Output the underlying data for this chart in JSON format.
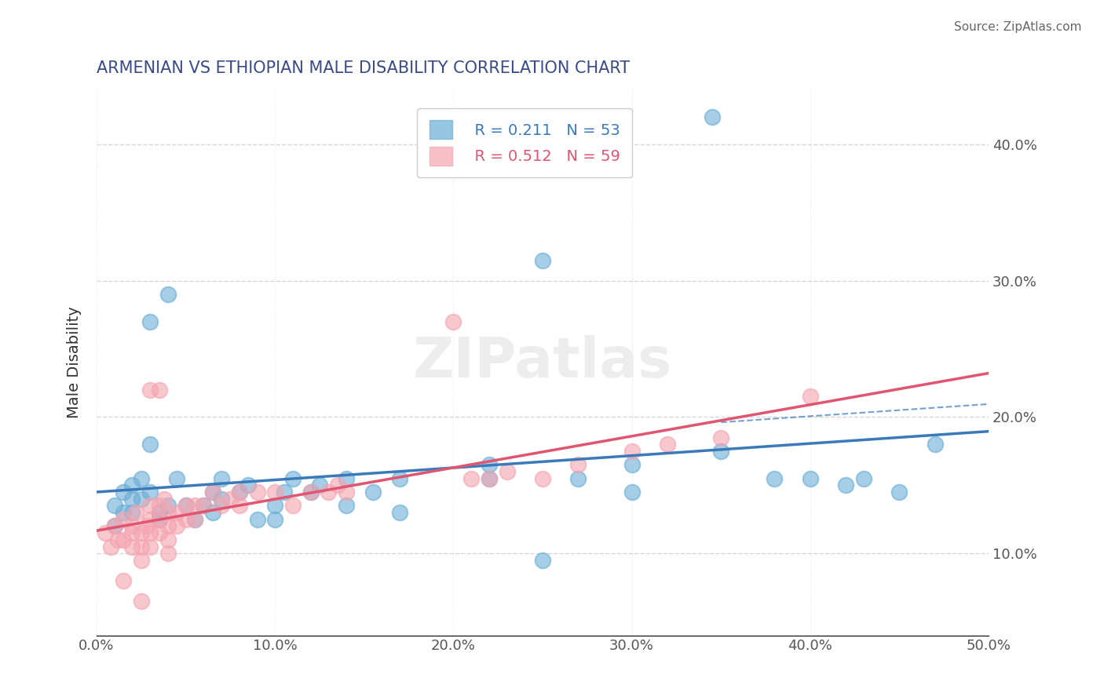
{
  "title": "ARMENIAN VS ETHIOPIAN MALE DISABILITY CORRELATION CHART",
  "source": "Source: ZipAtlas.com",
  "xlabel": "",
  "ylabel": "Male Disability",
  "xlim": [
    0.0,
    0.5
  ],
  "ylim": [
    0.04,
    0.44
  ],
  "xticks": [
    0.0,
    0.1,
    0.2,
    0.3,
    0.4,
    0.5
  ],
  "yticks": [
    0.1,
    0.2,
    0.3,
    0.4
  ],
  "armenian_color": "#6baed6",
  "ethiopian_color": "#f4a4b0",
  "armenian_R": 0.211,
  "armenian_N": 53,
  "ethiopian_R": 0.512,
  "ethiopian_N": 59,
  "title_color": "#3a4a8a",
  "axis_label_color": "#333333",
  "background_color": "#ffffff",
  "grid_color": "#cccccc",
  "armenian_line_color": "#3a7aba",
  "ethiopian_line_color": "#e05570",
  "armenian_scatter": [
    [
      0.01,
      0.135
    ],
    [
      0.01,
      0.12
    ],
    [
      0.015,
      0.145
    ],
    [
      0.015,
      0.13
    ],
    [
      0.02,
      0.15
    ],
    [
      0.02,
      0.14
    ],
    [
      0.02,
      0.13
    ],
    [
      0.025,
      0.155
    ],
    [
      0.025,
      0.14
    ],
    [
      0.03,
      0.27
    ],
    [
      0.03,
      0.145
    ],
    [
      0.03,
      0.18
    ],
    [
      0.035,
      0.13
    ],
    [
      0.035,
      0.125
    ],
    [
      0.04,
      0.29
    ],
    [
      0.04,
      0.135
    ],
    [
      0.045,
      0.155
    ],
    [
      0.05,
      0.135
    ],
    [
      0.055,
      0.125
    ],
    [
      0.06,
      0.135
    ],
    [
      0.065,
      0.145
    ],
    [
      0.065,
      0.13
    ],
    [
      0.07,
      0.14
    ],
    [
      0.07,
      0.155
    ],
    [
      0.08,
      0.145
    ],
    [
      0.085,
      0.15
    ],
    [
      0.09,
      0.125
    ],
    [
      0.1,
      0.125
    ],
    [
      0.1,
      0.135
    ],
    [
      0.105,
      0.145
    ],
    [
      0.11,
      0.155
    ],
    [
      0.12,
      0.145
    ],
    [
      0.125,
      0.15
    ],
    [
      0.14,
      0.135
    ],
    [
      0.14,
      0.155
    ],
    [
      0.155,
      0.145
    ],
    [
      0.17,
      0.155
    ],
    [
      0.17,
      0.13
    ],
    [
      0.22,
      0.165
    ],
    [
      0.22,
      0.155
    ],
    [
      0.25,
      0.315
    ],
    [
      0.25,
      0.095
    ],
    [
      0.27,
      0.155
    ],
    [
      0.3,
      0.165
    ],
    [
      0.3,
      0.145
    ],
    [
      0.345,
      0.42
    ],
    [
      0.35,
      0.175
    ],
    [
      0.38,
      0.155
    ],
    [
      0.4,
      0.155
    ],
    [
      0.42,
      0.15
    ],
    [
      0.43,
      0.155
    ],
    [
      0.45,
      0.145
    ],
    [
      0.47,
      0.18
    ]
  ],
  "ethiopian_scatter": [
    [
      0.005,
      0.115
    ],
    [
      0.008,
      0.105
    ],
    [
      0.01,
      0.12
    ],
    [
      0.012,
      0.11
    ],
    [
      0.015,
      0.125
    ],
    [
      0.015,
      0.11
    ],
    [
      0.015,
      0.08
    ],
    [
      0.02,
      0.12
    ],
    [
      0.02,
      0.115
    ],
    [
      0.02,
      0.105
    ],
    [
      0.022,
      0.13
    ],
    [
      0.025,
      0.115
    ],
    [
      0.025,
      0.105
    ],
    [
      0.025,
      0.095
    ],
    [
      0.025,
      0.065
    ],
    [
      0.028,
      0.12
    ],
    [
      0.03,
      0.22
    ],
    [
      0.03,
      0.135
    ],
    [
      0.03,
      0.125
    ],
    [
      0.03,
      0.115
    ],
    [
      0.03,
      0.105
    ],
    [
      0.035,
      0.22
    ],
    [
      0.035,
      0.135
    ],
    [
      0.035,
      0.125
    ],
    [
      0.035,
      0.115
    ],
    [
      0.038,
      0.14
    ],
    [
      0.04,
      0.13
    ],
    [
      0.04,
      0.12
    ],
    [
      0.04,
      0.11
    ],
    [
      0.04,
      0.1
    ],
    [
      0.045,
      0.13
    ],
    [
      0.045,
      0.12
    ],
    [
      0.05,
      0.135
    ],
    [
      0.05,
      0.125
    ],
    [
      0.055,
      0.135
    ],
    [
      0.055,
      0.125
    ],
    [
      0.06,
      0.135
    ],
    [
      0.065,
      0.145
    ],
    [
      0.07,
      0.135
    ],
    [
      0.075,
      0.14
    ],
    [
      0.08,
      0.145
    ],
    [
      0.08,
      0.135
    ],
    [
      0.09,
      0.145
    ],
    [
      0.1,
      0.145
    ],
    [
      0.11,
      0.135
    ],
    [
      0.12,
      0.145
    ],
    [
      0.13,
      0.145
    ],
    [
      0.135,
      0.15
    ],
    [
      0.14,
      0.145
    ],
    [
      0.2,
      0.27
    ],
    [
      0.21,
      0.155
    ],
    [
      0.22,
      0.155
    ],
    [
      0.23,
      0.16
    ],
    [
      0.25,
      0.155
    ],
    [
      0.27,
      0.165
    ],
    [
      0.3,
      0.175
    ],
    [
      0.32,
      0.18
    ],
    [
      0.35,
      0.185
    ],
    [
      0.4,
      0.215
    ]
  ]
}
